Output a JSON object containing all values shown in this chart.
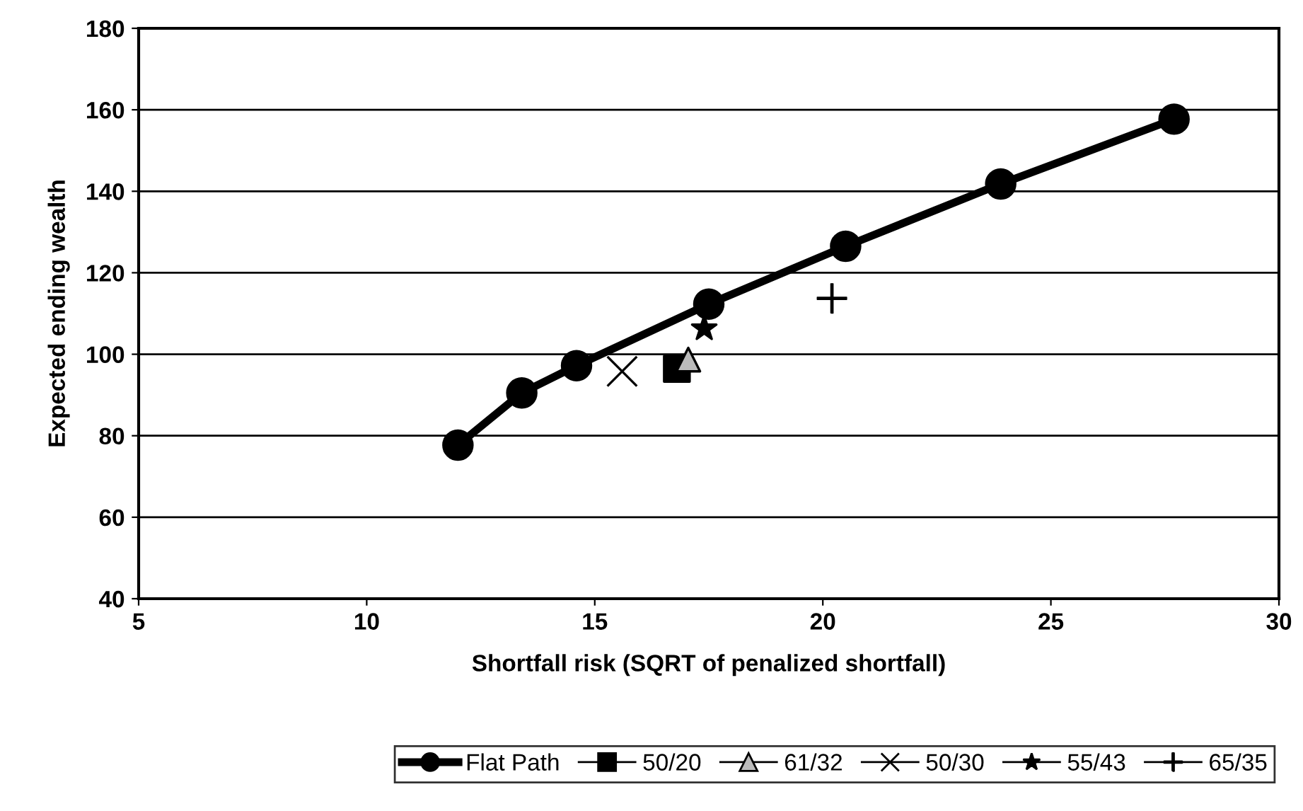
{
  "chart_data": {
    "type": "scatter",
    "xlabel": "Shortfall risk (SQRT of penalized shortfall)",
    "ylabel": "Expected ending wealth",
    "xlim": [
      5,
      30
    ],
    "xticks": [
      5,
      10,
      15,
      20,
      25,
      30
    ],
    "ylim": [
      40,
      180
    ],
    "yticks": [
      40,
      60,
      80,
      100,
      120,
      140,
      160,
      180
    ],
    "grid": "y",
    "legend": "bottom",
    "series": [
      {
        "name": "Flat Path",
        "type": "line",
        "marker": "circle",
        "color": "#000000",
        "x": [
          12.0,
          13.4,
          14.6,
          17.5,
          20.5,
          23.9,
          27.7
        ],
        "values": [
          77.7,
          90.5,
          97.2,
          112.3,
          126.5,
          141.8,
          157.7
        ]
      },
      {
        "name": "50/20",
        "marker": "square",
        "color": "#000000",
        "x": [
          16.8
        ],
        "values": [
          96.4
        ]
      },
      {
        "name": "61/32",
        "marker": "triangle",
        "color": "#bbbbbb",
        "x": [
          17.05
        ],
        "values": [
          98.7
        ]
      },
      {
        "name": "50/30",
        "marker": "cross",
        "color": "#000000",
        "x": [
          15.6
        ],
        "values": [
          95.8
        ]
      },
      {
        "name": "55/43",
        "marker": "star",
        "color": "#000000",
        "x": [
          17.4
        ],
        "values": [
          106.3
        ]
      },
      {
        "name": "65/35",
        "color": "#000000",
        "x": [
          20.2
        ],
        "values": [
          113.7
        ]
      }
    ]
  }
}
